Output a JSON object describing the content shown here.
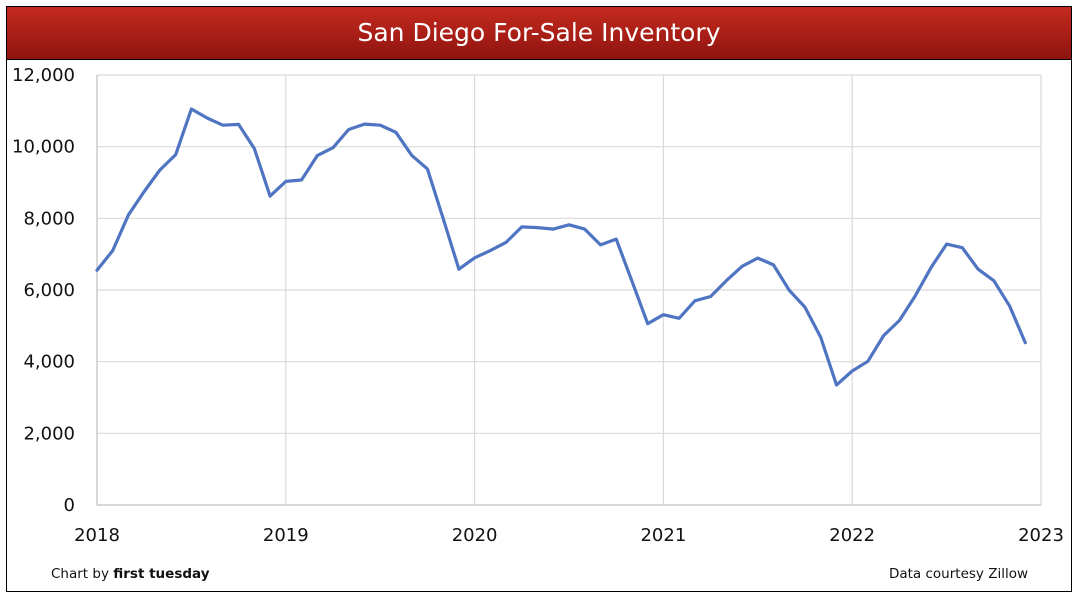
{
  "chart_data": {
    "type": "line",
    "title": "San Diego For-Sale Inventory",
    "xlabel": "",
    "ylabel": "",
    "xlim": [
      2018,
      2023
    ],
    "ylim": [
      0,
      12000
    ],
    "x_ticks": [
      "2018",
      "2019",
      "2020",
      "2021",
      "2022",
      "2023"
    ],
    "y_ticks": [
      "0",
      "2,000",
      "4,000",
      "6,000",
      "8,000",
      "10,000",
      "12,000"
    ],
    "grid": true,
    "line_color": "#4f74c2",
    "series": [
      {
        "values": [
          [
            2018.0,
            6550
          ],
          [
            2018.083,
            7100
          ],
          [
            2018.167,
            8100
          ],
          [
            2018.25,
            8750
          ],
          [
            2018.333,
            9350
          ],
          [
            2018.417,
            9780
          ],
          [
            2018.5,
            11050
          ],
          [
            2018.583,
            10800
          ],
          [
            2018.667,
            10600
          ],
          [
            2018.75,
            10620
          ],
          [
            2018.833,
            9950
          ],
          [
            2018.917,
            8620
          ],
          [
            2019.0,
            9030
          ],
          [
            2019.083,
            9070
          ],
          [
            2019.167,
            9750
          ],
          [
            2019.25,
            9970
          ],
          [
            2019.333,
            10480
          ],
          [
            2019.417,
            10630
          ],
          [
            2019.5,
            10600
          ],
          [
            2019.583,
            10400
          ],
          [
            2019.667,
            9760
          ],
          [
            2019.75,
            9380
          ],
          [
            2019.833,
            8000
          ],
          [
            2019.917,
            6580
          ],
          [
            2020.0,
            6900
          ],
          [
            2020.083,
            7100
          ],
          [
            2020.167,
            7330
          ],
          [
            2020.25,
            7760
          ],
          [
            2020.333,
            7740
          ],
          [
            2020.417,
            7700
          ],
          [
            2020.5,
            7820
          ],
          [
            2020.583,
            7700
          ],
          [
            2020.667,
            7260
          ],
          [
            2020.75,
            7420
          ],
          [
            2020.833,
            6250
          ],
          [
            2020.917,
            5060
          ],
          [
            2021.0,
            5310
          ],
          [
            2021.083,
            5210
          ],
          [
            2021.167,
            5700
          ],
          [
            2021.25,
            5820
          ],
          [
            2021.333,
            6260
          ],
          [
            2021.417,
            6660
          ],
          [
            2021.5,
            6890
          ],
          [
            2021.583,
            6700
          ],
          [
            2021.667,
            5990
          ],
          [
            2021.75,
            5520
          ],
          [
            2021.833,
            4680
          ],
          [
            2021.917,
            3350
          ],
          [
            2022.0,
            3740
          ],
          [
            2022.083,
            4010
          ],
          [
            2022.167,
            4730
          ],
          [
            2022.25,
            5150
          ],
          [
            2022.333,
            5830
          ],
          [
            2022.417,
            6620
          ],
          [
            2022.5,
            7280
          ],
          [
            2022.583,
            7180
          ],
          [
            2022.667,
            6580
          ],
          [
            2022.75,
            6260
          ],
          [
            2022.833,
            5560
          ],
          [
            2022.917,
            4530
          ]
        ]
      }
    ]
  },
  "footer": {
    "credit_prefix": "Chart by ",
    "credit_brand": "first tuesday",
    "source": "Data courtesy Zillow"
  },
  "colors": {
    "title_bar": "#b0221a",
    "grid": "#d9d9d9",
    "axis": "#bfbfbf"
  }
}
